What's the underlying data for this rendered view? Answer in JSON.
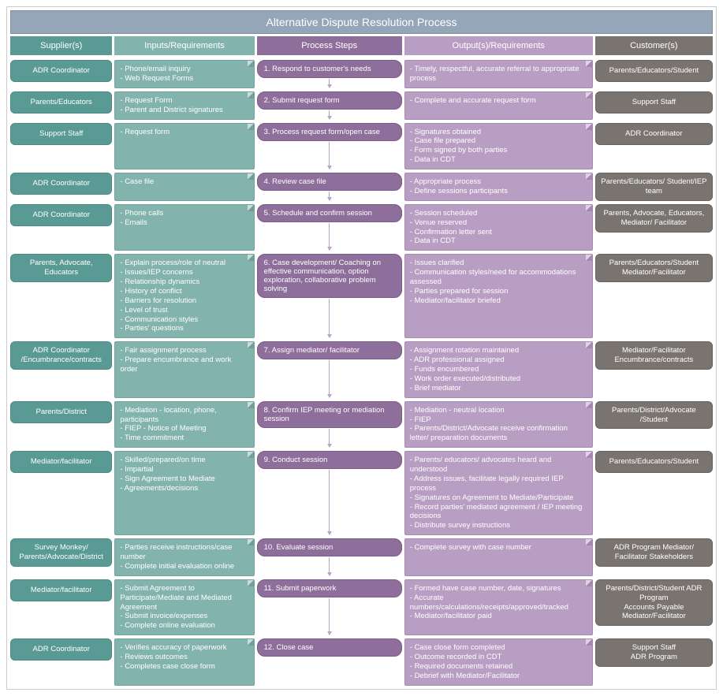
{
  "title": "Alternative Dispute Resolution Process",
  "headers": {
    "supplier": "Supplier(s)",
    "inputs": "Inputs/Requirements",
    "process": "Process Steps",
    "outputs": "Output(s)/Requirements",
    "customer": "Customer(s)"
  },
  "colors": {
    "titleBar": "#94a6b8",
    "supplierHeader": "#5a9a94",
    "inputsHeader": "#83b3ad",
    "processHeader": "#8e6e9a",
    "outputsHeader": "#b89ec2",
    "customerHeader": "#7a7470",
    "arrow": "#b9a4c3"
  },
  "rows": [
    {
      "supplier": "ADR Coordinator",
      "inputs": [
        "- Phone/email inquiry",
        "- Web Request Forms"
      ],
      "process": "1. Respond to customer's needs",
      "outputs": [
        "- Timely, respectful, accurate referral to appropriate process"
      ],
      "customer": "Parents/Educators/Student"
    },
    {
      "supplier": "Parents/Educators",
      "inputs": [
        "- Request Form",
        "- Parent and District signatures"
      ],
      "process": "2. Submit request form",
      "outputs": [
        "- Complete and accurate request form"
      ],
      "customer": "Support Staff"
    },
    {
      "supplier": "Support Staff",
      "inputs": [
        "- Request form"
      ],
      "process": "3. Process request form/open case",
      "outputs": [
        "- Signatures obtained",
        "- Case file prepared",
        "- Form signed by both parties",
        "- Data in CDT"
      ],
      "customer": "ADR Coordinator"
    },
    {
      "supplier": "ADR Coordinator",
      "inputs": [
        "- Case file"
      ],
      "process": "4. Review case file",
      "outputs": [
        "- Appropriate process",
        "- Define sessions participants"
      ],
      "customer": "Parents/Educators/ Student/IEP team"
    },
    {
      "supplier": "ADR Coordinator",
      "inputs": [
        "- Phone calls",
        "- Emails"
      ],
      "process": "5. Schedule and confirm session",
      "outputs": [
        "- Session scheduled",
        "- Venue reserved",
        "- Confirmation letter sent",
        "- Data in CDT"
      ],
      "customer": "Parents, Advocate, Educators, Mediator/ Facilitator"
    },
    {
      "supplier": "Parents, Advocate, Educators",
      "inputs": [
        "- Explain process/role of neutral",
        "- Issues/IEP concerns",
        "- Relationship dynamics",
        "- History of conflict",
        "- Barriers for resolution",
        "- Level of trust",
        "- Communication styles",
        "- Parties' questions"
      ],
      "process": "6. Case development/\nCoaching on effective communication, option exploration, collaborative problem solving",
      "outputs": [
        "- Issues clarified",
        "- Communication styles/need for accommodations assessed",
        "- Parties prepared for session",
        "- Mediator/facilitator briefed"
      ],
      "customer": "Parents/Educators/Student Mediator/Facilitator"
    },
    {
      "supplier": "ADR Coordinator /Encumbrance/contracts",
      "inputs": [
        "- Fair assignment process",
        "- Prepare encumbrance and work order"
      ],
      "process": "7. Assign mediator/ facilitator",
      "outputs": [
        "- Assignment rotation maintained",
        "- ADR professional assigned",
        "- Funds encumbered",
        "- Work order executed/distributed",
        "- Brief mediator"
      ],
      "customer": "Mediator/Facilitator Encumbrance/contracts"
    },
    {
      "supplier": "Parents/District",
      "inputs": [
        "- Mediation - location, phone, participants",
        "- FIEP - Notice of Meeting",
        "- Time commitment"
      ],
      "process": "8. Confirm IEP meeting or mediation session",
      "outputs": [
        "- Mediation - neutral location",
        "- FIEP",
        "- Parents/District/Advocate receive confirmation letter/ preparation documents"
      ],
      "customer": "Parents/District/Advocate /Student"
    },
    {
      "supplier": "Mediator/facilitator",
      "inputs": [
        "- Skilled/prepared/on time",
        "- Impartial",
        "- Sign Agreement to Mediate",
        "- Agreements/decisions"
      ],
      "process": "9. Conduct session",
      "outputs": [
        "- Parents/ educators/ advocates heard and understood",
        "- Address issues, facilitate legally required IEP process",
        "- Signatures on Agreement to Mediate/Participate",
        "- Record parties' mediated agreement / IEP meeting decisions",
        "- Distribute survey instructions"
      ],
      "customer": "Parents/Educators/Student"
    },
    {
      "supplier": "Survey Monkey/ Parents/Advocate/District",
      "inputs": [
        "- Parties receive instructions/case number",
        "- Complete initial evaluation online"
      ],
      "process": "10. Evaluate session",
      "outputs": [
        "- Complete survey with case number"
      ],
      "customer": "ADR Program Mediator/ Facilitator Stakeholders"
    },
    {
      "supplier": "Mediator/facilitator",
      "inputs": [
        "- Submit Agreement to Participate/Mediate and Mediated Agreement",
        "- Submit invoice/expenses",
        "- Complete online evaluation"
      ],
      "process": "11. Submit paperwork",
      "outputs": [
        "- Formed have case number, date, signatures",
        "- Accurate numbers/calculations/receipts/approved/tracked",
        "- Mediator/facilitator paid"
      ],
      "customer": "Parents/District/Student ADR Program\nAccounts Payable Mediator/Facilitator"
    },
    {
      "supplier": "ADR Coordinator",
      "inputs": [
        "- Verifies accuracy of paperwork",
        "- Reviews outcomes",
        "- Completes case close form"
      ],
      "process": "12. Close case",
      "outputs": [
        "- Case close form completed",
        "- Outcome recorded in CDT",
        "- Required documents retained",
        "- Debrief with Mediator/Facilitator"
      ],
      "customer": "Support Staff\nADR Program"
    }
  ]
}
